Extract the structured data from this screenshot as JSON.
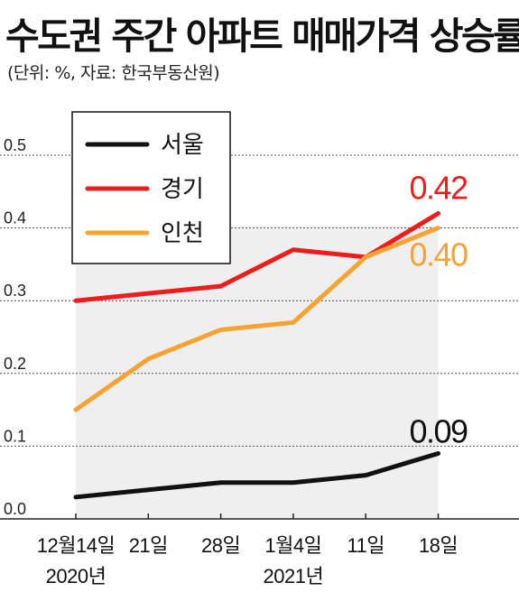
{
  "title": "수도권 주간 아파트 매매가격 상승률",
  "subtitle": "(단위: %, 자료: 한국부동산원)",
  "chart_data": {
    "type": "line",
    "title": "수도권 주간 아파트 매매가격 상승률",
    "unit_note": "(단위: %, 자료: 한국부동산원)",
    "categories": [
      "12월14일",
      "21일",
      "28일",
      "1월4일",
      "11일",
      "18일"
    ],
    "category_groups": [
      "2020년",
      "",
      "",
      "2021년",
      "",
      ""
    ],
    "ylim": [
      0,
      0.5
    ],
    "yticks": [
      "0.0",
      "0.1",
      "0.2",
      "0.3",
      "0.4",
      "0.5"
    ],
    "grid": "horizontal-dotted",
    "legend_position": "top-left",
    "series": [
      {
        "name": "서울",
        "color": "#111111",
        "values": [
          0.03,
          0.04,
          0.05,
          0.05,
          0.06,
          0.09
        ]
      },
      {
        "name": "경기",
        "color": "#ee1c1c",
        "values": [
          0.3,
          0.31,
          0.32,
          0.37,
          0.36,
          0.42
        ]
      },
      {
        "name": "인천",
        "color": "#f7a334",
        "values": [
          0.15,
          0.22,
          0.26,
          0.27,
          0.36,
          0.4
        ]
      }
    ],
    "end_labels": [
      {
        "series": "경기",
        "text": "0.42",
        "color": "#ee1c1c"
      },
      {
        "series": "인천",
        "text": "0.40",
        "color": "#f7a334"
      },
      {
        "series": "서울",
        "text": "0.09",
        "color": "#111111"
      }
    ],
    "shaded_band_color": "#efefef"
  }
}
